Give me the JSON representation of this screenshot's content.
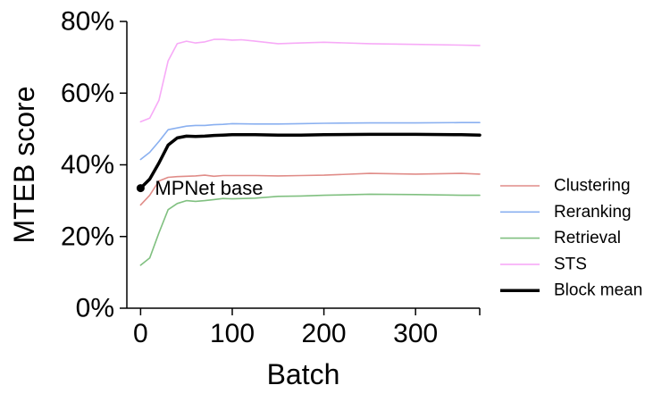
{
  "chart_data": {
    "type": "line",
    "xlabel": "Batch",
    "ylabel": "MTEB score",
    "xlim": [
      -15,
      370
    ],
    "ylim": [
      0,
      80
    ],
    "x_ticks": [
      0,
      100,
      200,
      300
    ],
    "x_tick_labels": [
      "0",
      "100",
      "200",
      "300"
    ],
    "y_ticks": [
      0,
      20,
      40,
      60,
      80
    ],
    "y_tick_labels": [
      "0%",
      "20%",
      "40%",
      "60%",
      "80%"
    ],
    "grid": false,
    "legend_position": "right",
    "annotation": {
      "text": "MPNet base",
      "x": 0,
      "y": 33.5
    },
    "series": [
      {
        "name": "Clustering",
        "color": "#e08c88",
        "width": "thin",
        "x": [
          0,
          10,
          20,
          30,
          40,
          50,
          60,
          70,
          80,
          90,
          100,
          125,
          150,
          175,
          200,
          250,
          300,
          350,
          370
        ],
        "values": [
          28.8,
          31.5,
          35.5,
          36.5,
          36.7,
          36.8,
          36.9,
          37.1,
          36.8,
          37.0,
          37.0,
          37.0,
          36.9,
          37.0,
          37.1,
          37.6,
          37.4,
          37.6,
          37.4
        ]
      },
      {
        "name": "Reranking",
        "color": "#8ab0f0",
        "width": "thin",
        "x": [
          0,
          10,
          20,
          30,
          40,
          50,
          60,
          70,
          80,
          90,
          100,
          125,
          150,
          175,
          200,
          250,
          300,
          350,
          370
        ],
        "values": [
          41.5,
          43.5,
          46.5,
          49.8,
          50.3,
          50.8,
          51.0,
          51.0,
          51.2,
          51.3,
          51.5,
          51.4,
          51.4,
          51.5,
          51.6,
          51.7,
          51.7,
          51.8,
          51.8
        ]
      },
      {
        "name": "Retrieval",
        "color": "#80c080",
        "width": "thin",
        "x": [
          0,
          10,
          20,
          30,
          40,
          50,
          60,
          70,
          80,
          90,
          100,
          125,
          150,
          175,
          200,
          250,
          300,
          350,
          370
        ],
        "values": [
          12.0,
          14.0,
          21.0,
          27.5,
          29.2,
          30.0,
          29.8,
          30.0,
          30.3,
          30.6,
          30.5,
          30.7,
          31.2,
          31.3,
          31.5,
          31.8,
          31.7,
          31.5,
          31.5
        ]
      },
      {
        "name": "STS",
        "color": "#f7aaf7",
        "width": "thin",
        "x": [
          0,
          10,
          20,
          30,
          40,
          50,
          60,
          70,
          80,
          90,
          100,
          110,
          125,
          150,
          175,
          200,
          250,
          300,
          350,
          370
        ],
        "values": [
          52.0,
          53.0,
          58.0,
          69.0,
          73.8,
          74.5,
          74.0,
          74.3,
          75.0,
          75.0,
          74.8,
          74.9,
          74.5,
          73.8,
          74.0,
          74.2,
          73.8,
          73.6,
          73.4,
          73.3
        ]
      },
      {
        "name": "Block mean",
        "color": "#000000",
        "width": "thick",
        "x": [
          0,
          10,
          20,
          30,
          40,
          50,
          60,
          70,
          80,
          90,
          100,
          125,
          150,
          175,
          200,
          250,
          300,
          350,
          370
        ],
        "values": [
          33.5,
          36.0,
          40.5,
          45.5,
          47.5,
          48.0,
          47.9,
          48.0,
          48.2,
          48.3,
          48.4,
          48.4,
          48.3,
          48.3,
          48.4,
          48.5,
          48.5,
          48.4,
          48.3
        ]
      }
    ]
  }
}
